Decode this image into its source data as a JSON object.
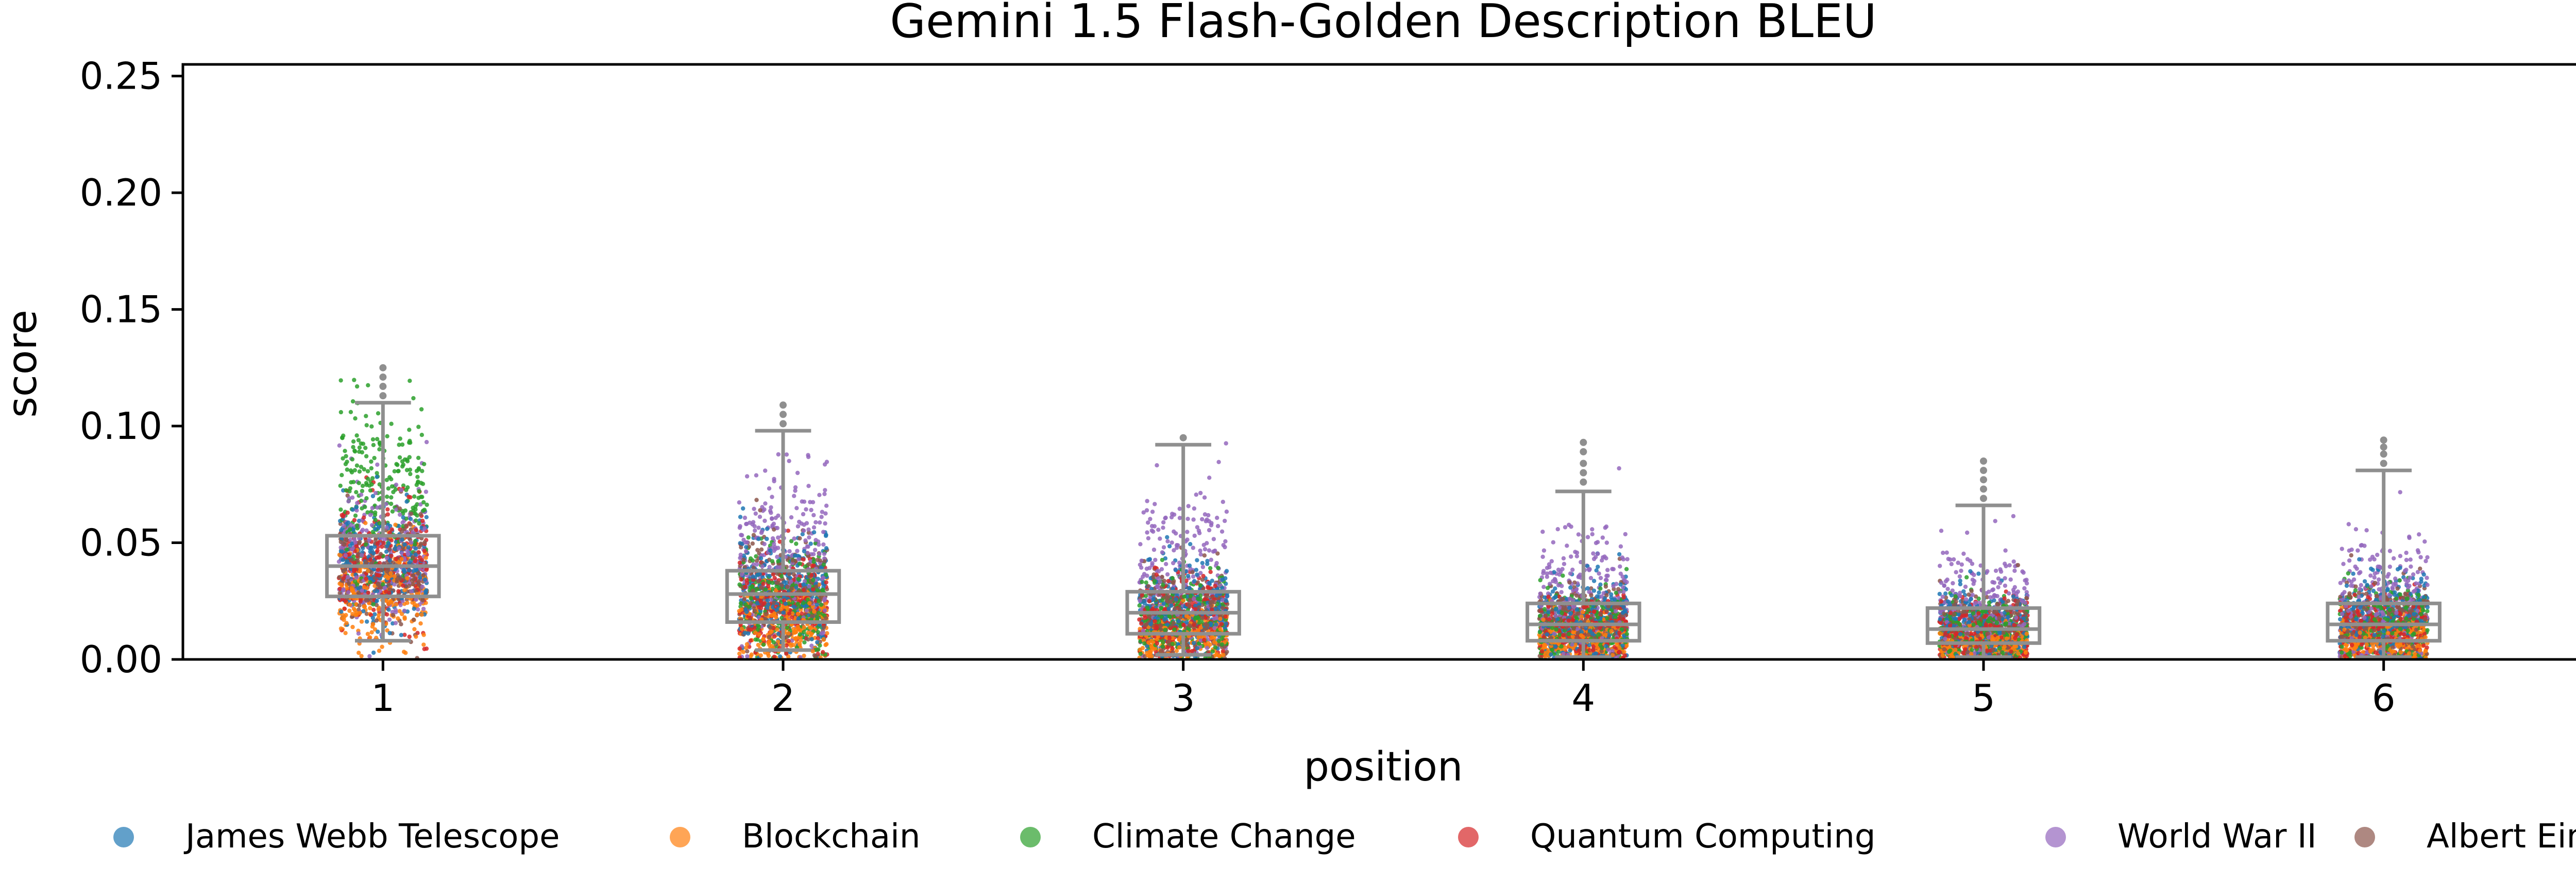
{
  "chart_data": {
    "type": "scatter",
    "subtype": "strip-plot-with-boxplots",
    "title": "Gemini 1.5 Flash-Golden Description BLEU",
    "xlabel": "position",
    "ylabel": "score",
    "categories": [
      "1",
      "2",
      "3",
      "4",
      "5",
      "6"
    ],
    "ylim": [
      0,
      0.255
    ],
    "yticks": [
      "0.00",
      "0.05",
      "0.10",
      "0.15",
      "0.20",
      "0.25"
    ],
    "ytick_values": [
      0,
      0.05,
      0.1,
      0.15,
      0.2,
      0.25
    ],
    "grid": false,
    "legend_position": "bottom",
    "series": [
      {
        "name": "James Webb Telescope",
        "color": "#1f77b4"
      },
      {
        "name": "Blockchain",
        "color": "#ff7f0e"
      },
      {
        "name": "Climate Change",
        "color": "#2ca02c"
      },
      {
        "name": "Quantum Computing",
        "color": "#d62728"
      },
      {
        "name": "World War II",
        "color": "#9467bd"
      },
      {
        "name": "Albert Einstein",
        "color": "#8c564b"
      }
    ],
    "boxplots": [
      {
        "category": "1",
        "q1": 0.027,
        "median": 0.04,
        "q3": 0.053,
        "whisker_low": 0.008,
        "whisker_high": 0.11,
        "outliers": [
          0.113,
          0.117,
          0.121,
          0.125
        ]
      },
      {
        "category": "2",
        "q1": 0.016,
        "median": 0.028,
        "q3": 0.038,
        "whisker_low": 0.004,
        "whisker_high": 0.098,
        "outliers": [
          0.101,
          0.105,
          0.109
        ]
      },
      {
        "category": "3",
        "q1": 0.011,
        "median": 0.02,
        "q3": 0.029,
        "whisker_low": 0.002,
        "whisker_high": 0.092,
        "outliers": [
          0.095
        ]
      },
      {
        "category": "4",
        "q1": 0.008,
        "median": 0.015,
        "q3": 0.024,
        "whisker_low": 0.001,
        "whisker_high": 0.072,
        "outliers": [
          0.076,
          0.08,
          0.084,
          0.089,
          0.093
        ]
      },
      {
        "category": "5",
        "q1": 0.007,
        "median": 0.013,
        "q3": 0.022,
        "whisker_low": 0.001,
        "whisker_high": 0.066,
        "outliers": [
          0.069,
          0.073,
          0.077,
          0.081,
          0.085
        ]
      },
      {
        "category": "6",
        "q1": 0.008,
        "median": 0.015,
        "q3": 0.024,
        "whisker_low": 0.001,
        "whisker_high": 0.081,
        "outliers": [
          0.084,
          0.088,
          0.091,
          0.094
        ]
      }
    ],
    "series_spread": [
      {
        "category": "1",
        "by_series": [
          {
            "center": 0.04,
            "sd": 0.013,
            "max": 0.09
          },
          {
            "center": 0.028,
            "sd": 0.011,
            "max": 0.065
          },
          {
            "center": 0.072,
            "sd": 0.02,
            "max": 0.12
          },
          {
            "center": 0.042,
            "sd": 0.013,
            "max": 0.085
          },
          {
            "center": 0.045,
            "sd": 0.015,
            "max": 0.095
          },
          {
            "center": 0.038,
            "sd": 0.012,
            "max": 0.08
          }
        ]
      },
      {
        "category": "2",
        "by_series": [
          {
            "center": 0.03,
            "sd": 0.013,
            "max": 0.075
          },
          {
            "center": 0.015,
            "sd": 0.008,
            "max": 0.045
          },
          {
            "center": 0.025,
            "sd": 0.011,
            "max": 0.065
          },
          {
            "center": 0.024,
            "sd": 0.011,
            "max": 0.06
          },
          {
            "center": 0.045,
            "sd": 0.02,
            "max": 0.105
          },
          {
            "center": 0.028,
            "sd": 0.012,
            "max": 0.07
          }
        ]
      },
      {
        "category": "3",
        "by_series": [
          {
            "center": 0.022,
            "sd": 0.011,
            "max": 0.06
          },
          {
            "center": 0.01,
            "sd": 0.006,
            "max": 0.035
          },
          {
            "center": 0.018,
            "sd": 0.009,
            "max": 0.05
          },
          {
            "center": 0.017,
            "sd": 0.009,
            "max": 0.05
          },
          {
            "center": 0.035,
            "sd": 0.02,
            "max": 0.095
          },
          {
            "center": 0.02,
            "sd": 0.01,
            "max": 0.055
          }
        ]
      },
      {
        "category": "4",
        "by_series": [
          {
            "center": 0.017,
            "sd": 0.009,
            "max": 0.055
          },
          {
            "center": 0.008,
            "sd": 0.005,
            "max": 0.03
          },
          {
            "center": 0.014,
            "sd": 0.008,
            "max": 0.045
          },
          {
            "center": 0.013,
            "sd": 0.007,
            "max": 0.04
          },
          {
            "center": 0.025,
            "sd": 0.015,
            "max": 0.09
          },
          {
            "center": 0.016,
            "sd": 0.008,
            "max": 0.05
          }
        ]
      },
      {
        "category": "5",
        "by_series": [
          {
            "center": 0.015,
            "sd": 0.008,
            "max": 0.05
          },
          {
            "center": 0.007,
            "sd": 0.004,
            "max": 0.028
          },
          {
            "center": 0.012,
            "sd": 0.007,
            "max": 0.04
          },
          {
            "center": 0.011,
            "sd": 0.006,
            "max": 0.038
          },
          {
            "center": 0.022,
            "sd": 0.014,
            "max": 0.08
          },
          {
            "center": 0.014,
            "sd": 0.007,
            "max": 0.045
          }
        ]
      },
      {
        "category": "6",
        "by_series": [
          {
            "center": 0.017,
            "sd": 0.009,
            "max": 0.055
          },
          {
            "center": 0.008,
            "sd": 0.005,
            "max": 0.032
          },
          {
            "center": 0.014,
            "sd": 0.008,
            "max": 0.045
          },
          {
            "center": 0.013,
            "sd": 0.007,
            "max": 0.042
          },
          {
            "center": 0.026,
            "sd": 0.016,
            "max": 0.092
          },
          {
            "center": 0.016,
            "sd": 0.008,
            "max": 0.05
          }
        ]
      }
    ]
  }
}
